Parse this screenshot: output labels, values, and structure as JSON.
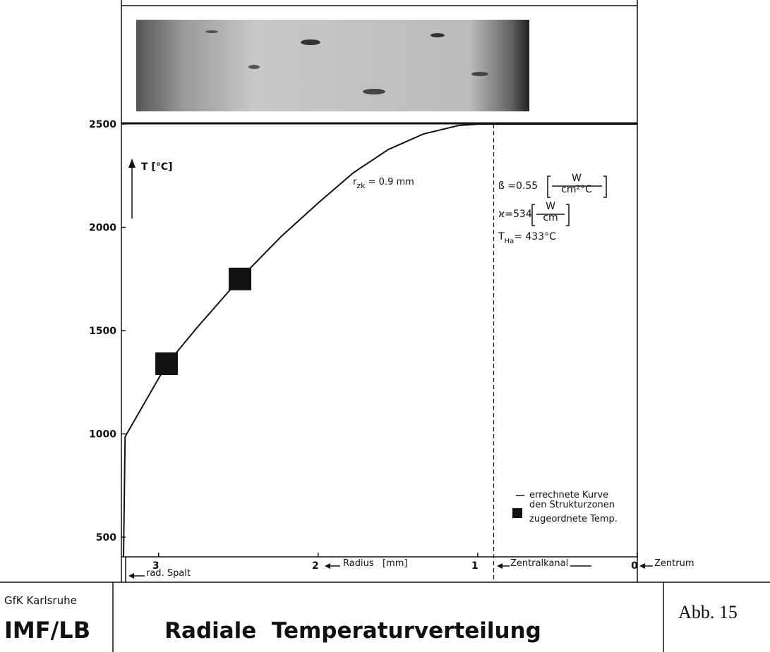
{
  "chart_data": {
    "type": "line",
    "title": "Radiale  Temperaturverteilung",
    "x_label": "Radius   [mm]",
    "y_label": "T [°C]",
    "xlim": [
      3.22,
      0
    ],
    "ylim": [
      405,
      2500
    ],
    "xticks": [
      3,
      2,
      1,
      0
    ],
    "yticks": [
      500,
      1000,
      1500,
      2000,
      2500
    ],
    "reference_line": {
      "x": 0.9,
      "style": "dashed"
    },
    "series": [
      {
        "name": "errechnete Kurve",
        "color": "#111111",
        "x": [
          3.22,
          3.21,
          3.2,
          2.95,
          2.76,
          2.49,
          2.23,
          2.0,
          1.78,
          1.56,
          1.34,
          1.12,
          0.99,
          0
        ],
        "values": [
          404,
          985,
          1000,
          1336,
          1514,
          1752,
          1957,
          2118,
          2264,
          2377,
          2452,
          2493,
          2500,
          2500
        ]
      },
      {
        "name": "den Strukturzonen zugeordnete Temp.",
        "type": "scatter",
        "marker": "square",
        "color": "#111111",
        "x": [
          2.95,
          2.49
        ],
        "values": [
          1340,
          1750
        ]
      }
    ],
    "annotations": {
      "r_zk": {
        "symbol": "r",
        "sub": "zk",
        "text": " = 0.9 mm"
      },
      "beta": {
        "text": "ß =0.55",
        "unit_num": "W",
        "unit_den": "cm²°C"
      },
      "kappa": {
        "text": "ϰ=534",
        "unit_num": "W",
        "unit_den": "cm"
      },
      "t_ha": {
        "symbol": "T",
        "sub": "Ha",
        "text": "= 433°C"
      },
      "gap": "rad. Spalt",
      "channel": "Zentralkanal",
      "center": "Zentrum"
    }
  },
  "footer": {
    "institution": "GfK Karlsruhe",
    "department": "IMF/LB",
    "figure": "Abb. 15"
  }
}
